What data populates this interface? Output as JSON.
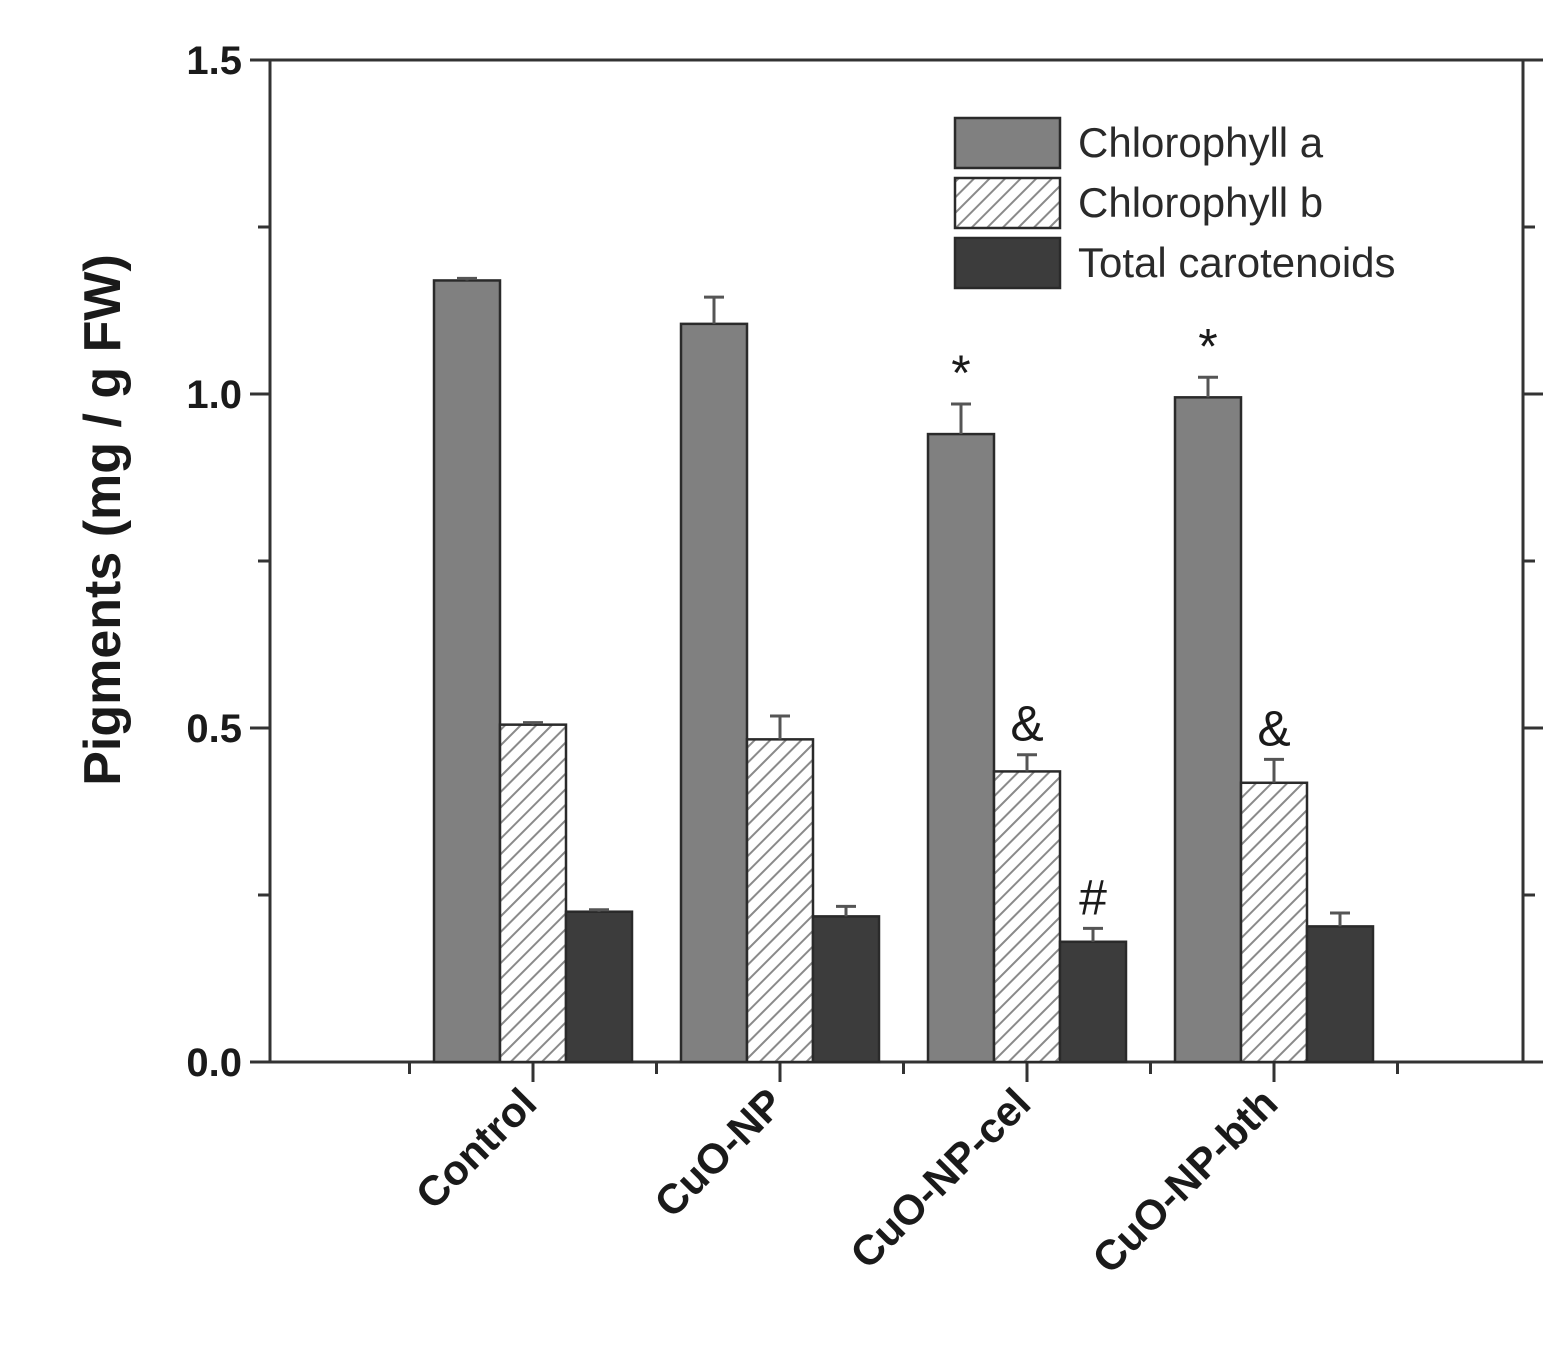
{
  "chart_data": {
    "type": "bar",
    "title": "",
    "xlabel": "",
    "ylabel": "Pigments (mg / g FW)",
    "ylim": [
      0,
      1.5
    ],
    "yticks": [
      "0.0",
      "0.5",
      "1.0",
      "1.5"
    ],
    "categories": [
      "Control",
      "CuO-NP",
      "CuO-NP-cel",
      "CuO-NP-bth"
    ],
    "series": [
      {
        "name": "Chlorophyll a",
        "pattern": "solid",
        "color": "#808080",
        "values": [
          1.17,
          1.105,
          0.94,
          0.995
        ],
        "errors": [
          0.003,
          0.04,
          0.045,
          0.03
        ],
        "annotations": [
          "",
          "",
          "*",
          "*"
        ]
      },
      {
        "name": "Chlorophyll b",
        "pattern": "hatched",
        "color": "#ffffff",
        "values": [
          0.505,
          0.483,
          0.435,
          0.418
        ],
        "errors": [
          0.003,
          0.035,
          0.025,
          0.035
        ],
        "annotations": [
          "",
          "",
          "&",
          "&"
        ]
      },
      {
        "name": "Total carotenoids",
        "pattern": "solid",
        "color": "#3c3c3c",
        "values": [
          0.225,
          0.218,
          0.18,
          0.203
        ],
        "errors": [
          0.003,
          0.015,
          0.02,
          0.02
        ],
        "annotations": [
          "",
          "",
          "#",
          ""
        ]
      }
    ],
    "legend": "top-right",
    "grid": false
  }
}
